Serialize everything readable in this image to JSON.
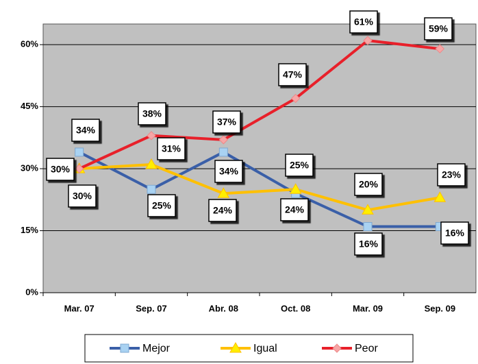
{
  "chart_data": {
    "type": "line",
    "categories": [
      "Mar. 07",
      "Sep. 07",
      "Abr. 08",
      "Oct. 08",
      "Mar. 09",
      "Sep. 09"
    ],
    "series": [
      {
        "name": "Mejor",
        "color": "#3a5fa8",
        "marker_color": "#a9d2f2",
        "values": [
          34,
          25,
          34,
          24,
          16,
          16
        ],
        "value_labels": [
          "34%",
          "25%",
          "34%",
          "24%",
          "16%",
          "16%"
        ]
      },
      {
        "name": "Igual",
        "color": "#ffc000",
        "marker_color": "#ffee00",
        "values": [
          30,
          31,
          24,
          25,
          20,
          23
        ],
        "value_labels": [
          "30%",
          "31%",
          "24%",
          "25%",
          "20%",
          "23%"
        ]
      },
      {
        "name": "Peor",
        "color": "#e8202a",
        "marker_color": "#f6a6a6",
        "values": [
          30,
          38,
          37,
          47,
          61,
          59
        ],
        "value_labels": [
          "30%",
          "38%",
          "37%",
          "47%",
          "61%",
          "59%"
        ]
      }
    ],
    "ylim": [
      0,
      65
    ],
    "yticks": [
      {
        "value": 0,
        "label": "0%"
      },
      {
        "value": 15,
        "label": "15%"
      },
      {
        "value": 30,
        "label": "30%"
      },
      {
        "value": 45,
        "label": "45%"
      },
      {
        "value": 60,
        "label": "60%"
      }
    ],
    "grid": true,
    "legend": "bottom"
  }
}
